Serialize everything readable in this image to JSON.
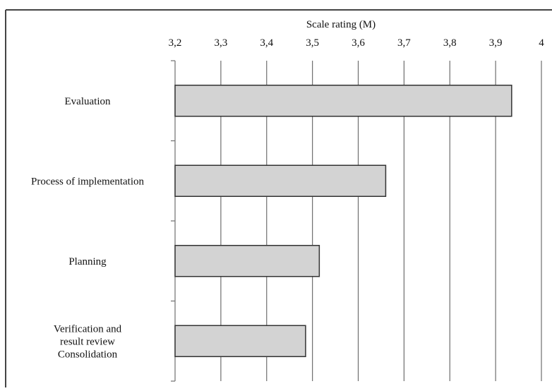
{
  "chart_data": {
    "type": "bar",
    "orientation": "horizontal",
    "xlabel": "Scale rating (M)",
    "xaxis_position": "top",
    "xlim": [
      3.2,
      4.0
    ],
    "xticks": [
      "3,2",
      "3,3",
      "3,4",
      "3,5",
      "3,6",
      "3,7",
      "3,8",
      "3,9",
      "4"
    ],
    "grid": "vertical",
    "categories": [
      [
        "Evaluation"
      ],
      [
        "Process of implementation"
      ],
      [
        "Planning"
      ],
      [
        "Verification and",
        "result review",
        "Consolidation"
      ]
    ],
    "values": [
      3.935,
      3.66,
      3.515,
      3.485
    ],
    "colors": {
      "bar_fill": "#d3d3d3",
      "bar_stroke": "#333333",
      "grid": "#6f6f6f",
      "frame": "#444444"
    }
  }
}
